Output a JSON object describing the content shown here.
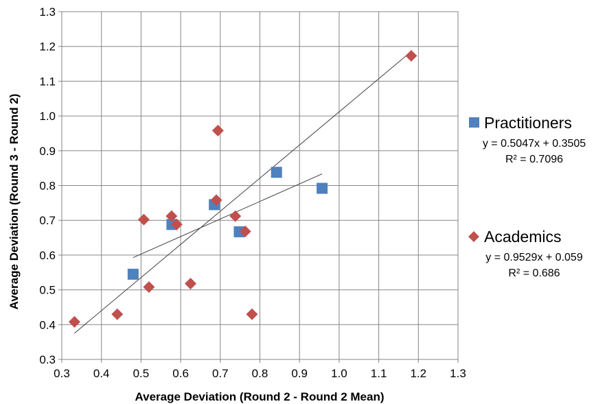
{
  "chart_data": {
    "type": "scatter",
    "xlabel": "Average Deviation (Round 2 - Round 2 Mean)",
    "ylabel": "Average Deviation (Round 3 - Round 2)",
    "xlim": [
      0.3,
      1.3
    ],
    "ylim": [
      0.3,
      1.3
    ],
    "x_ticks": [
      "0.3",
      "0.4",
      "0.5",
      "0.6",
      "0.7",
      "0.8",
      "0.9",
      "1.0",
      "1.1",
      "1.2",
      "1.3"
    ],
    "y_ticks": [
      "0.3",
      "0.4",
      "0.5",
      "0.6",
      "0.7",
      "0.8",
      "0.9",
      "1.0",
      "1.1",
      "1.2",
      "1.3"
    ],
    "grid": true,
    "legend_position": "right",
    "series": [
      {
        "name": "Practitioners",
        "marker": "square",
        "color": "#4F81BD",
        "points": [
          {
            "x": 0.48,
            "y": 0.545
          },
          {
            "x": 0.578,
            "y": 0.688
          },
          {
            "x": 0.685,
            "y": 0.745
          },
          {
            "x": 0.748,
            "y": 0.667
          },
          {
            "x": 0.842,
            "y": 0.838
          },
          {
            "x": 0.957,
            "y": 0.792
          }
        ],
        "trendline": {
          "equation": "y = 0.5047x + 0.3505",
          "r_squared": "R² = 0.7096",
          "x_range": [
            0.48,
            0.957
          ],
          "color": "#404040"
        }
      },
      {
        "name": "Academics",
        "marker": "diamond",
        "color": "#C0504D",
        "points": [
          {
            "x": 0.332,
            "y": 0.408
          },
          {
            "x": 0.44,
            "y": 0.43
          },
          {
            "x": 0.507,
            "y": 0.702
          },
          {
            "x": 0.52,
            "y": 0.508
          },
          {
            "x": 0.577,
            "y": 0.712
          },
          {
            "x": 0.59,
            "y": 0.688
          },
          {
            "x": 0.625,
            "y": 0.518
          },
          {
            "x": 0.69,
            "y": 0.758
          },
          {
            "x": 0.694,
            "y": 0.958
          },
          {
            "x": 0.738,
            "y": 0.712
          },
          {
            "x": 0.763,
            "y": 0.668
          },
          {
            "x": 0.78,
            "y": 0.43
          },
          {
            "x": 1.182,
            "y": 1.173
          }
        ],
        "trendline": {
          "equation": "y = 0.9529x + 0.059",
          "r_squared": "R² = 0.686",
          "x_range": [
            0.332,
            1.182
          ],
          "color": "#404040"
        }
      }
    ]
  }
}
